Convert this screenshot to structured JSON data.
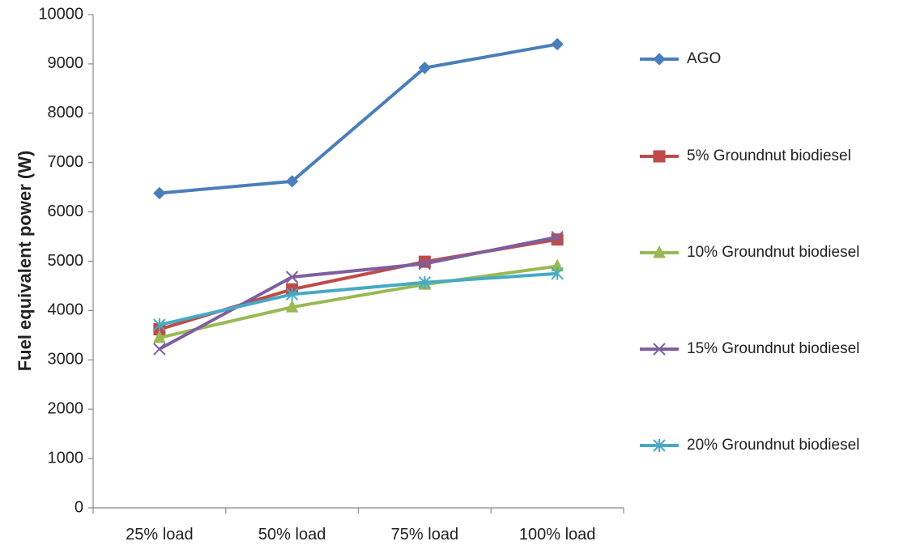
{
  "chart_data": {
    "type": "line",
    "title": "",
    "xlabel": "",
    "ylabel": "Fuel equivalent power (W)",
    "ylim": [
      0,
      10000
    ],
    "yticks": [
      0,
      1000,
      2000,
      3000,
      4000,
      5000,
      6000,
      7000,
      8000,
      9000,
      10000
    ],
    "grid": false,
    "legend": "right",
    "categories": [
      "25% load",
      "50% load",
      "75% load",
      "100% load"
    ],
    "series": [
      {
        "name": "AGO",
        "color": "#4a7ebb",
        "marker": "diamond",
        "values": [
          6380,
          6620,
          8920,
          9400
        ]
      },
      {
        "name": "5% Groundnut biodiesel",
        "color": "#be4b48",
        "marker": "square",
        "values": [
          3620,
          4430,
          4990,
          5440
        ]
      },
      {
        "name": "10% Groundnut biodiesel",
        "color": "#98b954",
        "marker": "triangle",
        "values": [
          3450,
          4070,
          4530,
          4900
        ]
      },
      {
        "name": "15% Groundnut biodiesel",
        "color": "#7d5fa0",
        "marker": "x",
        "values": [
          3220,
          4680,
          4950,
          5490
        ]
      },
      {
        "name": "20% Groundnut biodiesel",
        "color": "#46aac5",
        "marker": "star",
        "values": [
          3710,
          4330,
          4570,
          4750
        ]
      }
    ]
  }
}
